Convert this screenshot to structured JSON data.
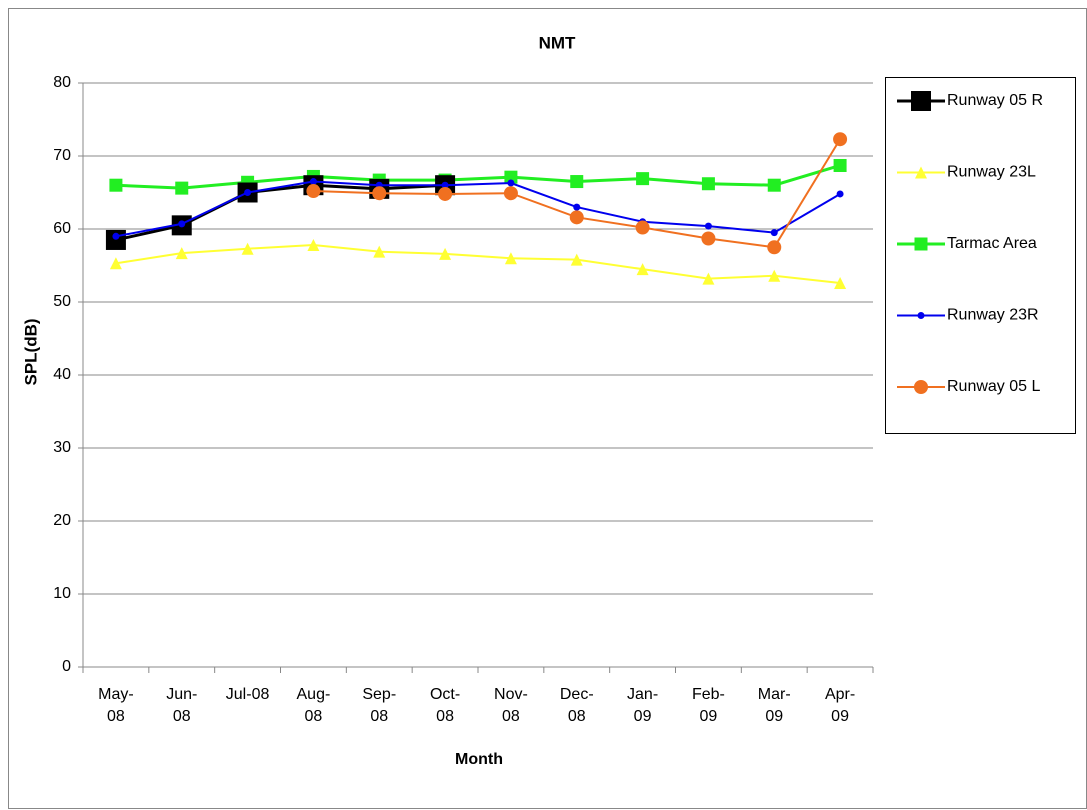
{
  "chart_data": {
    "type": "line",
    "title": "NMT",
    "x_label": "Month",
    "y_label": "SPL(dB)",
    "categories": [
      "May-08",
      "Jun-08",
      "Jul-08",
      "Aug-08",
      "Sep-08",
      "Oct-08",
      "Nov-08",
      "Dec-08",
      "Jan-09",
      "Feb-09",
      "Mar-09",
      "Apr-09"
    ],
    "series": [
      {
        "name": "Runway 05 R",
        "color": "#000000",
        "marker": "square",
        "values": [
          58.5,
          60.5,
          65,
          66,
          65.5,
          66,
          null,
          null,
          null,
          null,
          null,
          null
        ]
      },
      {
        "name": "Runway 23L",
        "color": "#ffff33",
        "marker": "triangle",
        "values": [
          55.3,
          56.7,
          57.3,
          57.8,
          56.9,
          56.6,
          56.0,
          55.8,
          54.5,
          53.2,
          53.6,
          52.6
        ]
      },
      {
        "name": "Tarmac Area",
        "color": "#22ee22",
        "marker": "square",
        "values": [
          66,
          65.6,
          66.4,
          67.2,
          66.7,
          66.7,
          67.1,
          66.5,
          66.9,
          66.2,
          66,
          68.7
        ]
      },
      {
        "name": "Runway 23R",
        "color": "#0000ee",
        "marker": "circle",
        "values": [
          59,
          60.7,
          65,
          66.5,
          66,
          66,
          66.3,
          63,
          61,
          60.4,
          59.5,
          64.8
        ]
      },
      {
        "name": "Runway 05 L",
        "color": "#f07020",
        "marker": "circle",
        "values": [
          null,
          null,
          null,
          65.2,
          64.9,
          64.8,
          64.9,
          61.6,
          60.2,
          58.7,
          57.5,
          72.3
        ]
      }
    ],
    "ylim": [
      0,
      80
    ],
    "yticks": [
      0,
      10,
      20,
      30,
      40,
      50,
      60,
      70,
      80
    ],
    "grid": true,
    "legend": "right"
  }
}
